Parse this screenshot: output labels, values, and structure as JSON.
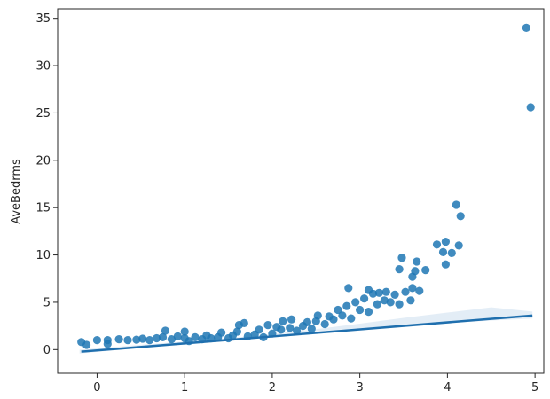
{
  "chart_data": {
    "type": "scatter",
    "title": "",
    "xlabel": "",
    "ylabel": "AveBedrms",
    "xlim": [
      -0.45,
      5.1
    ],
    "ylim": [
      -2.5,
      36
    ],
    "xticks": [
      "0",
      "1",
      "2",
      "3",
      "4",
      "5"
    ],
    "yticks": [
      "0",
      "5",
      "10",
      "15",
      "20",
      "25",
      "30",
      "35"
    ],
    "grid": false,
    "legend": "none",
    "colors": {
      "points": "#1f77b4",
      "fit_line": "#1f6fae",
      "ci_band": "#aecbe6"
    },
    "series": [
      {
        "kind": "scatter",
        "points": [
          [
            -0.18,
            0.8
          ],
          [
            -0.12,
            0.5
          ],
          [
            0.0,
            1.0
          ],
          [
            0.12,
            1.0
          ],
          [
            0.12,
            0.6
          ],
          [
            0.25,
            1.1
          ],
          [
            0.35,
            1.0
          ],
          [
            0.45,
            1.05
          ],
          [
            0.52,
            1.15
          ],
          [
            0.6,
            1.0
          ],
          [
            0.68,
            1.2
          ],
          [
            0.75,
            1.3
          ],
          [
            0.78,
            2.0
          ],
          [
            0.85,
            1.1
          ],
          [
            0.92,
            1.4
          ],
          [
            1.0,
            1.2
          ],
          [
            1.0,
            1.9
          ],
          [
            1.05,
            0.9
          ],
          [
            1.12,
            1.3
          ],
          [
            1.2,
            1.1
          ],
          [
            1.25,
            1.5
          ],
          [
            1.3,
            1.2
          ],
          [
            1.38,
            1.3
          ],
          [
            1.42,
            1.8
          ],
          [
            1.5,
            1.2
          ],
          [
            1.55,
            1.5
          ],
          [
            1.6,
            1.9
          ],
          [
            1.62,
            2.6
          ],
          [
            1.68,
            2.8
          ],
          [
            1.72,
            1.4
          ],
          [
            1.8,
            1.6
          ],
          [
            1.85,
            2.1
          ],
          [
            1.9,
            1.3
          ],
          [
            1.95,
            2.6
          ],
          [
            2.0,
            1.7
          ],
          [
            2.05,
            2.4
          ],
          [
            2.1,
            2.1
          ],
          [
            2.12,
            3.0
          ],
          [
            2.2,
            2.3
          ],
          [
            2.22,
            3.2
          ],
          [
            2.28,
            2.0
          ],
          [
            2.35,
            2.5
          ],
          [
            2.4,
            2.9
          ],
          [
            2.45,
            2.2
          ],
          [
            2.5,
            3.0
          ],
          [
            2.52,
            3.6
          ],
          [
            2.6,
            2.7
          ],
          [
            2.65,
            3.5
          ],
          [
            2.7,
            3.2
          ],
          [
            2.75,
            4.2
          ],
          [
            2.8,
            3.6
          ],
          [
            2.85,
            4.6
          ],
          [
            2.87,
            6.5
          ],
          [
            2.9,
            3.3
          ],
          [
            2.95,
            5.0
          ],
          [
            3.0,
            4.2
          ],
          [
            3.05,
            5.4
          ],
          [
            3.1,
            4.0
          ],
          [
            3.1,
            6.3
          ],
          [
            3.15,
            5.9
          ],
          [
            3.2,
            4.8
          ],
          [
            3.22,
            6.0
          ],
          [
            3.28,
            5.2
          ],
          [
            3.3,
            6.1
          ],
          [
            3.35,
            5.0
          ],
          [
            3.4,
            5.8
          ],
          [
            3.45,
            4.8
          ],
          [
            3.45,
            8.5
          ],
          [
            3.48,
            9.7
          ],
          [
            3.52,
            6.1
          ],
          [
            3.58,
            5.2
          ],
          [
            3.6,
            6.5
          ],
          [
            3.6,
            7.7
          ],
          [
            3.63,
            8.3
          ],
          [
            3.65,
            9.3
          ],
          [
            3.68,
            6.2
          ],
          [
            3.75,
            8.4
          ],
          [
            3.88,
            11.1
          ],
          [
            3.95,
            10.3
          ],
          [
            3.98,
            11.4
          ],
          [
            3.98,
            9.0
          ],
          [
            4.05,
            10.2
          ],
          [
            4.1,
            15.3
          ],
          [
            4.13,
            11.0
          ],
          [
            4.15,
            14.1
          ],
          [
            4.9,
            34.0
          ],
          [
            4.95,
            25.6
          ]
        ],
        "band": {
          "x": [
            -0.2,
            0.5,
            1.0,
            1.5,
            2.0,
            2.5,
            3.0,
            3.5,
            4.0,
            4.5,
            4.97
          ],
          "x_ticks_mid": [
            0.4,
            1.4,
            2.2,
            3.0,
            3.4
          ],
          "lower": [
            -0.42,
            0.21,
            0.65,
            1.11,
            1.55,
            1.94,
            2.25,
            2.55,
            2.82,
            3.07,
            3.28
          ],
          "upper": [
            -0.02,
            0.51,
            0.85,
            1.21,
            1.65,
            2.16,
            2.75,
            3.35,
            3.92,
            4.47,
            4.02
          ]
        },
        "fit_line": {
          "x": [
            -0.18,
            4.97
          ],
          "y": [
            -0.22,
            3.6
          ]
        }
      }
    ]
  }
}
